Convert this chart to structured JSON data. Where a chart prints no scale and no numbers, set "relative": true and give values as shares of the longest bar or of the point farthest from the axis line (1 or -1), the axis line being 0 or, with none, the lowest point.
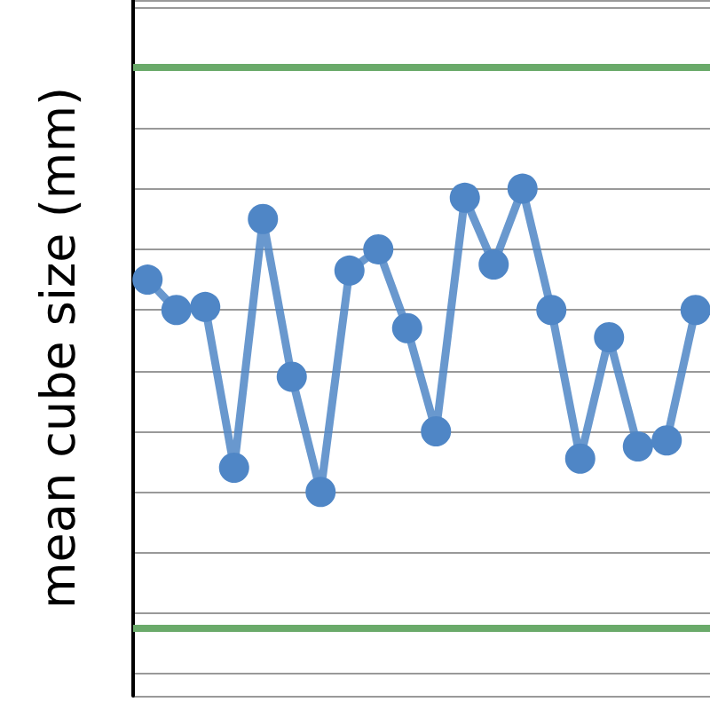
{
  "chart_data": {
    "type": "line",
    "ylabel": "mean cube size (mm)",
    "relative": true,
    "categories": [
      null,
      null,
      null,
      null,
      null,
      null,
      null,
      null,
      null,
      null,
      null,
      null,
      null,
      null,
      null,
      null,
      null,
      null,
      null,
      null
    ],
    "series": [
      {
        "color": "#4f86c6",
        "values": [
          0.7,
          0.6,
          0.61,
          0.08,
          0.9,
          0.38,
          0,
          0.73,
          0.8,
          0.54,
          0.2,
          0.97,
          0.75,
          1,
          0.6,
          0.11,
          0.51,
          0.15,
          0.17,
          0.6
        ]
      }
    ],
    "ref_lines": [
      {
        "axis": "y",
        "value": 1.4,
        "color": "#6aaa6a"
      },
      {
        "axis": "y",
        "value": -0.45,
        "color": "#6aaa6a"
      }
    ],
    "grid": "y",
    "marker": "circle",
    "line_style": "solid"
  }
}
